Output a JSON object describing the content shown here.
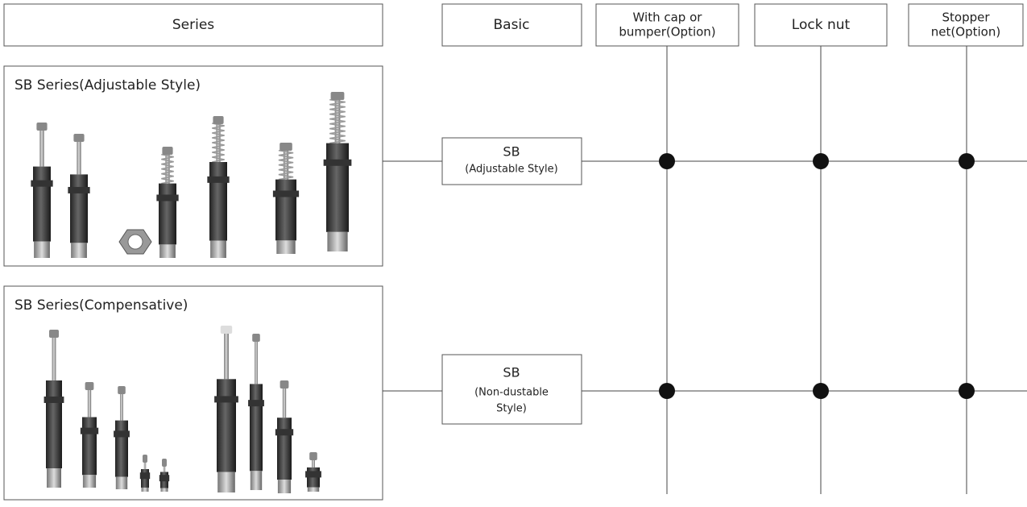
{
  "headers": {
    "series": "Series",
    "basic": "Basic",
    "options": [
      {
        "lines": [
          "With cap or",
          "bumper(Option)"
        ]
      },
      {
        "lines": [
          "Lock nut"
        ]
      },
      {
        "lines": [
          "Stopper",
          "net(Option)"
        ]
      }
    ]
  },
  "rows": [
    {
      "series_title": "SB Series(Adjustable Style)",
      "basic_lines": [
        "SB",
        "(Adjustable Style)"
      ]
    },
    {
      "series_title": "SB Series(Compensative)",
      "basic_lines": [
        "SB",
        "(Non-dustable",
        "Style)"
      ]
    }
  ]
}
